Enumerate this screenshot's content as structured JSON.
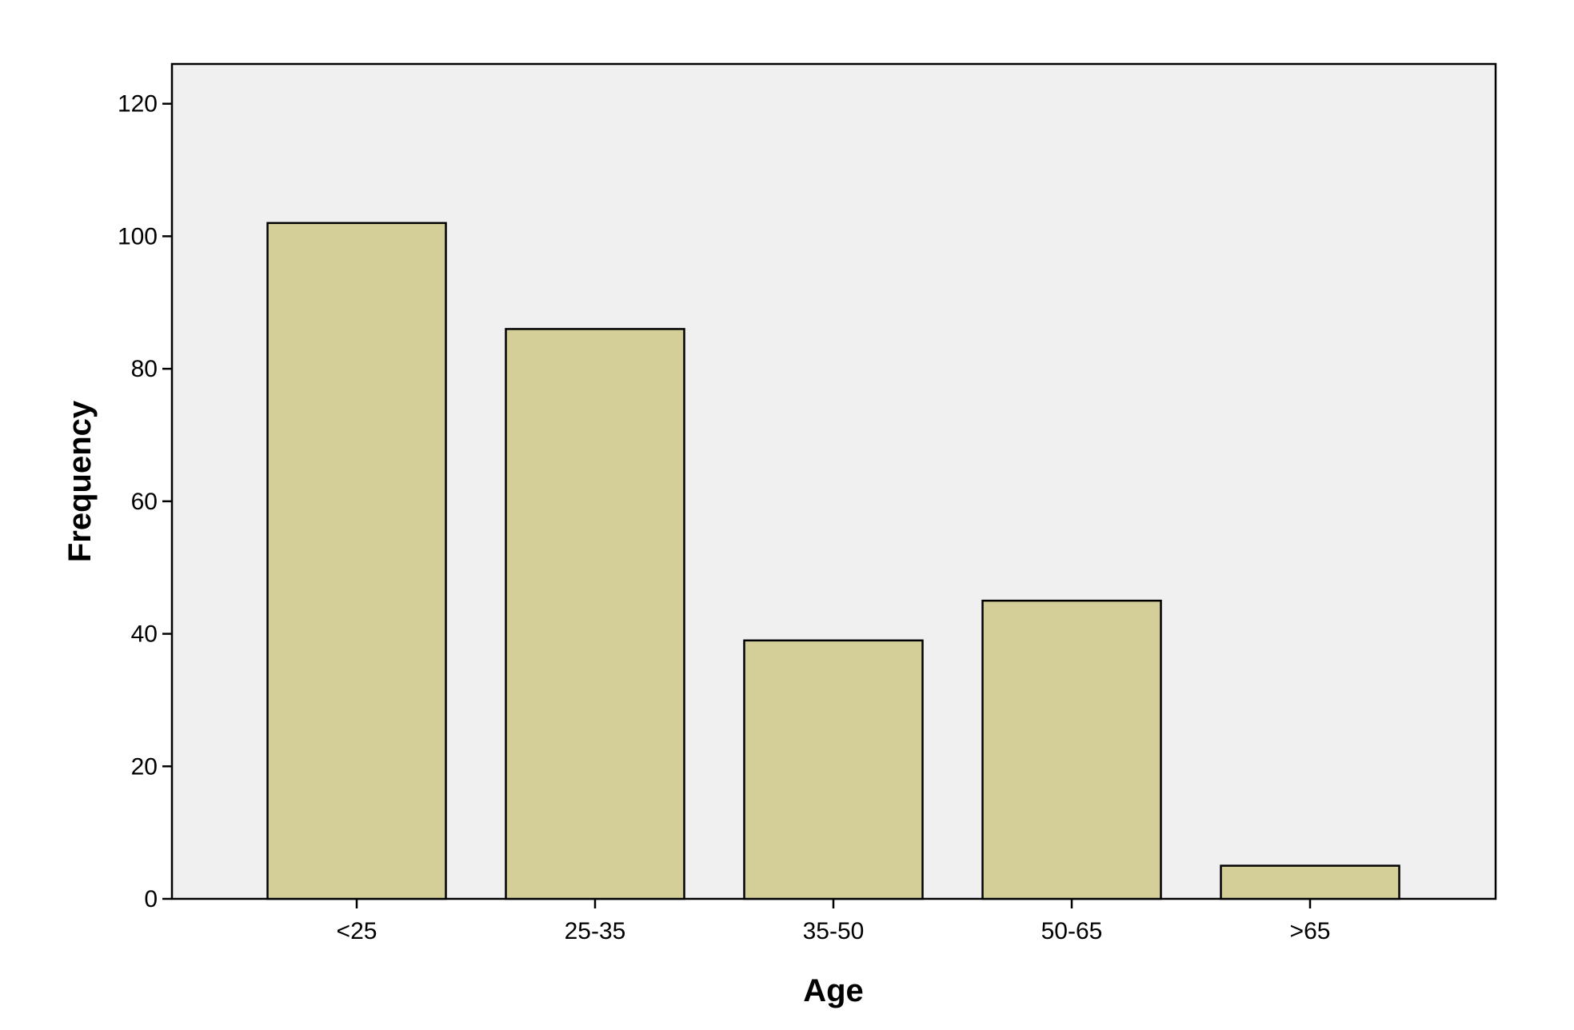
{
  "chart_data": {
    "type": "bar",
    "title": "",
    "xlabel": "Age",
    "ylabel": "Frequency",
    "categories": [
      "<25",
      "25-35",
      "35-50",
      "50-65",
      ">65"
    ],
    "values": [
      102,
      86,
      39,
      45,
      5
    ],
    "ylim": [
      0,
      126
    ],
    "yticks": [
      0,
      20,
      40,
      60,
      80,
      100,
      120
    ],
    "grid": false,
    "legend": "none",
    "colors": {
      "bar_fill": "#d4cf98",
      "bar_stroke": "#000000",
      "plot_background": "#f0f0f0"
    }
  }
}
